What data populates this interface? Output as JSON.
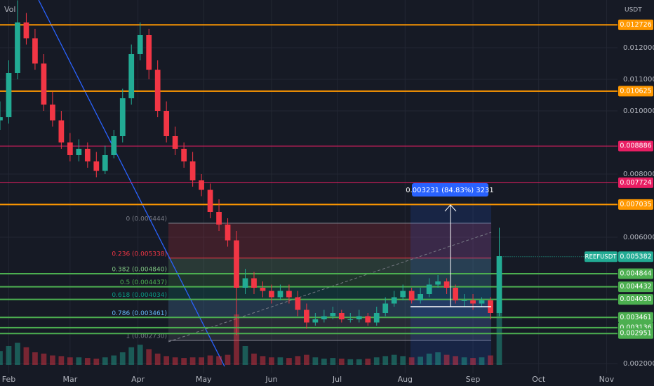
{
  "header": {
    "left": "Vol",
    "right": "USDT"
  },
  "chart_data": {
    "type": "candlestick",
    "xlim": [
      0,
      282
    ],
    "xticks": [
      {
        "value": 4,
        "label": "Feb"
      },
      {
        "value": 32,
        "label": "Mar"
      },
      {
        "value": 63,
        "label": "Apr"
      },
      {
        "value": 93,
        "label": "May"
      },
      {
        "value": 124,
        "label": "Jun"
      },
      {
        "value": 154,
        "label": "Jul"
      },
      {
        "value": 185,
        "label": "Aug"
      },
      {
        "value": 216,
        "label": "Sep"
      },
      {
        "value": 246,
        "label": "Oct"
      },
      {
        "value": 277,
        "label": "Nov"
      }
    ],
    "ylim": [
      0.001689,
      0.013511
    ],
    "yticks": [
      {
        "value": 0.012,
        "label": "0.012000"
      },
      {
        "value": 0.011,
        "label": "0.011000"
      },
      {
        "value": 0.01,
        "label": "0.010000"
      },
      {
        "value": 0.008,
        "label": "0.008000"
      },
      {
        "value": 0.006,
        "label": "0.006000"
      },
      {
        "value": 0.002,
        "label": "0.002000"
      }
    ],
    "grid": true,
    "up_color": "#22ab94",
    "down_color": "#f23645",
    "x": [
      0,
      4,
      8,
      12,
      16,
      20,
      24,
      28,
      32,
      36,
      40,
      44,
      48,
      52,
      56,
      60,
      64,
      68,
      72,
      76,
      80,
      84,
      88,
      92,
      96,
      100,
      104,
      108,
      112,
      116,
      120,
      124,
      128,
      132,
      136,
      140,
      144,
      148,
      152,
      156,
      160,
      164,
      168,
      172,
      176,
      180,
      184,
      188,
      192,
      196,
      200,
      204,
      208,
      212,
      216,
      220,
      224,
      228
    ],
    "open": [
      0.0097,
      0.0098,
      0.0112,
      0.0128,
      0.0123,
      0.0115,
      0.0102,
      0.0097,
      0.009,
      0.0086,
      0.0088,
      0.0084,
      0.0081,
      0.0086,
      0.0092,
      0.0104,
      0.0118,
      0.0124,
      0.0113,
      0.01,
      0.0092,
      0.0088,
      0.0084,
      0.0078,
      0.0075,
      0.0068,
      0.0064,
      0.0059,
      0.0044,
      0.0047,
      0.0044,
      0.0043,
      0.0041,
      0.0043,
      0.0041,
      0.0037,
      0.0033,
      0.0034,
      0.0035,
      0.0036,
      0.0034,
      0.0034,
      0.0035,
      0.0033,
      0.0036,
      0.0039,
      0.0041,
      0.0043,
      0.004,
      0.0042,
      0.0045,
      0.0046,
      0.0044,
      0.004,
      0.004,
      0.0039,
      0.004,
      0.0036
    ],
    "high": [
      0.0103,
      0.0116,
      0.0135,
      0.0131,
      0.0126,
      0.0118,
      0.0106,
      0.01,
      0.0093,
      0.0091,
      0.009,
      0.0087,
      0.0089,
      0.0094,
      0.0107,
      0.0121,
      0.0128,
      0.0126,
      0.0116,
      0.0103,
      0.0095,
      0.009,
      0.0087,
      0.008,
      0.0077,
      0.0072,
      0.0066,
      0.0062,
      0.005,
      0.0049,
      0.0046,
      0.0045,
      0.0045,
      0.0045,
      0.0043,
      0.0039,
      0.0036,
      0.0037,
      0.0038,
      0.0037,
      0.0036,
      0.0037,
      0.0036,
      0.0038,
      0.0041,
      0.0043,
      0.0045,
      0.0044,
      0.0044,
      0.0047,
      0.0048,
      0.0047,
      0.0045,
      0.0042,
      0.0042,
      0.0041,
      0.0041,
      0.0063
    ],
    "low": [
      0.0094,
      0.0096,
      0.011,
      0.0121,
      0.0113,
      0.01,
      0.0095,
      0.0088,
      0.0084,
      0.0084,
      0.0082,
      0.0079,
      0.008,
      0.0085,
      0.009,
      0.0102,
      0.0116,
      0.011,
      0.0098,
      0.009,
      0.0086,
      0.0082,
      0.0076,
      0.0073,
      0.0066,
      0.0062,
      0.0057,
      0.0029,
      0.0042,
      0.0042,
      0.0041,
      0.0039,
      0.004,
      0.0039,
      0.0035,
      0.0031,
      0.0032,
      0.0033,
      0.0034,
      0.0033,
      0.0033,
      0.0033,
      0.0032,
      0.0032,
      0.0035,
      0.0038,
      0.004,
      0.0039,
      0.0039,
      0.0041,
      0.0044,
      0.0042,
      0.0039,
      0.0038,
      0.0037,
      0.0038,
      0.0034,
      0.0035
    ],
    "close": [
      0.0098,
      0.0112,
      0.0128,
      0.0123,
      0.0115,
      0.0102,
      0.0097,
      0.009,
      0.0086,
      0.0088,
      0.0084,
      0.0081,
      0.0086,
      0.0092,
      0.0104,
      0.0118,
      0.0124,
      0.0113,
      0.01,
      0.0092,
      0.0088,
      0.0084,
      0.0078,
      0.0075,
      0.0068,
      0.0064,
      0.0059,
      0.0044,
      0.0047,
      0.0044,
      0.0043,
      0.0041,
      0.0043,
      0.0041,
      0.0037,
      0.0033,
      0.0034,
      0.0035,
      0.0036,
      0.0034,
      0.0034,
      0.0035,
      0.0033,
      0.0036,
      0.0039,
      0.0041,
      0.0043,
      0.004,
      0.0042,
      0.0045,
      0.0046,
      0.0044,
      0.004,
      0.004,
      0.0039,
      0.004,
      0.0036,
      0.0054
    ],
    "volume": [
      22,
      30,
      35,
      28,
      20,
      18,
      15,
      14,
      12,
      12,
      11,
      10,
      12,
      15,
      20,
      28,
      32,
      25,
      18,
      14,
      12,
      11,
      12,
      12,
      15,
      14,
      16,
      80,
      30,
      18,
      14,
      12,
      12,
      11,
      14,
      16,
      12,
      10,
      11,
      10,
      9,
      9,
      10,
      12,
      14,
      16,
      14,
      12,
      13,
      18,
      20,
      16,
      14,
      12,
      11,
      12,
      15,
      100
    ],
    "levels": [
      {
        "value": 0.012726,
        "label": "0.012726",
        "color": "#ff9800"
      },
      {
        "value": 0.010625,
        "label": "0.010625",
        "color": "#ff9800"
      },
      {
        "value": 0.008886,
        "label": "0.008886",
        "color": "#e91e63"
      },
      {
        "value": 0.007724,
        "label": "0.007724",
        "color": "#e91e63"
      },
      {
        "value": 0.007035,
        "label": "0.007035",
        "color": "#ff9800"
      },
      {
        "value": 0.004844,
        "label": "0.004844",
        "color": "#4caf50"
      },
      {
        "value": 0.004432,
        "label": "0.004432",
        "color": "#4caf50"
      },
      {
        "value": 0.00403,
        "label": "0.004030",
        "color": "#4caf50"
      },
      {
        "value": 0.003461,
        "label": "0.003461",
        "color": "#4caf50"
      },
      {
        "value": 0.003136,
        "label": "0.003136",
        "color": "#4caf50"
      },
      {
        "value": 0.002951,
        "label": "0.002951",
        "color": "#4caf50"
      }
    ],
    "last_price": {
      "symbol": "REEFUSDT",
      "value": 0.005382,
      "label": "0.005382",
      "color": "#22ab94"
    },
    "fib": [
      {
        "price": 0.006444,
        "label": "0 (0.006444)",
        "color": "#787b86"
      },
      {
        "price": 0.005338,
        "label": "0.236 (0.005338)",
        "color": "#f23645"
      },
      {
        "price": 0.00484,
        "label": "0.382 (0.004840)",
        "color": "#81c784"
      },
      {
        "price": 0.004437,
        "label": "0.5 (0.004437)",
        "color": "#4caf50"
      },
      {
        "price": 0.004034,
        "label": "0.618 (0.004034)",
        "color": "#089981"
      },
      {
        "price": 0.003461,
        "label": "0.786 (0.003461)",
        "color": "#64b5f6"
      },
      {
        "price": 0.00273,
        "label": "1 (0.002730)",
        "color": "#787b86"
      }
    ],
    "measure_label": "0.003231 (84.83%) 3231"
  }
}
